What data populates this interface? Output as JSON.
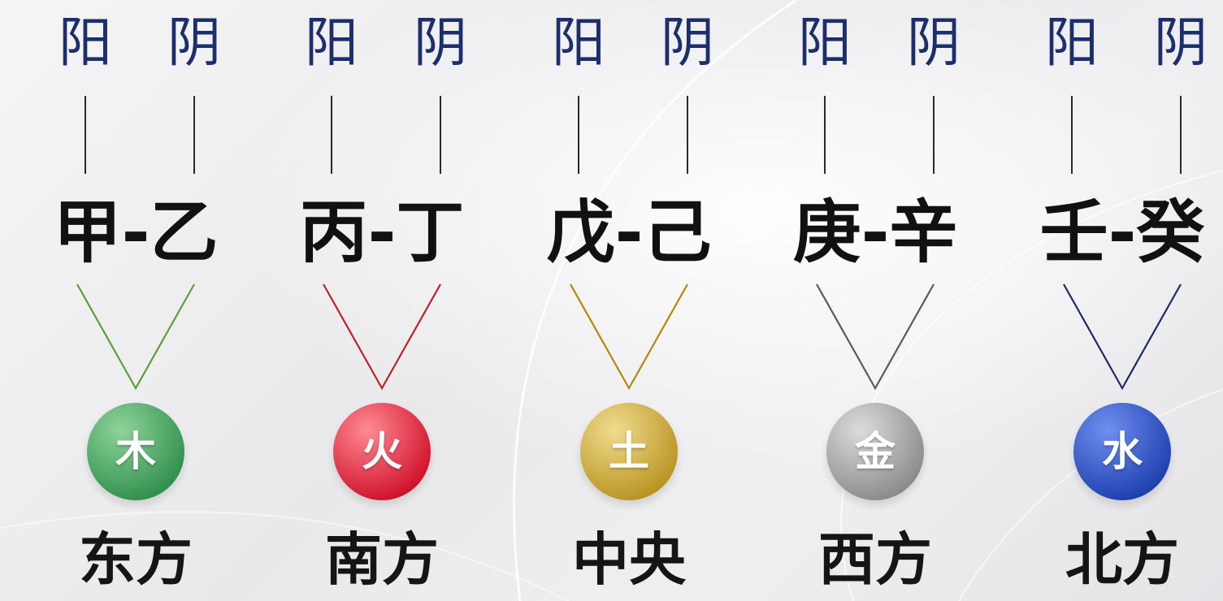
{
  "groups": [
    {
      "yang": "阳",
      "yin": "阴",
      "stems": "甲-乙",
      "element": "木",
      "direction": "东方",
      "line_color": "#5b9e3a",
      "ball_light": "#8fd39a",
      "ball_dark": "#2f8f4e"
    },
    {
      "yang": "阳",
      "yin": "阴",
      "stems": "丙-丁",
      "element": "火",
      "direction": "南方",
      "line_color": "#c0202b",
      "ball_light": "#ff8a93",
      "ball_dark": "#d0102a"
    },
    {
      "yang": "阳",
      "yin": "阴",
      "stems": "戊-己",
      "element": "土",
      "direction": "中央",
      "line_color": "#b8860b",
      "ball_light": "#f1dc8e",
      "ball_dark": "#b89320"
    },
    {
      "yang": "阳",
      "yin": "阴",
      "stems": "庚-辛",
      "element": "金",
      "direction": "西方",
      "line_color": "#5a5a5a",
      "ball_light": "#dcdcdc",
      "ball_dark": "#8a8a8a"
    },
    {
      "yang": "阳",
      "yin": "阴",
      "stems": "壬-癸",
      "element": "水",
      "direction": "北方",
      "line_color": "#1c2a6b",
      "ball_light": "#6f8ff0",
      "ball_dark": "#1d3fae"
    }
  ]
}
